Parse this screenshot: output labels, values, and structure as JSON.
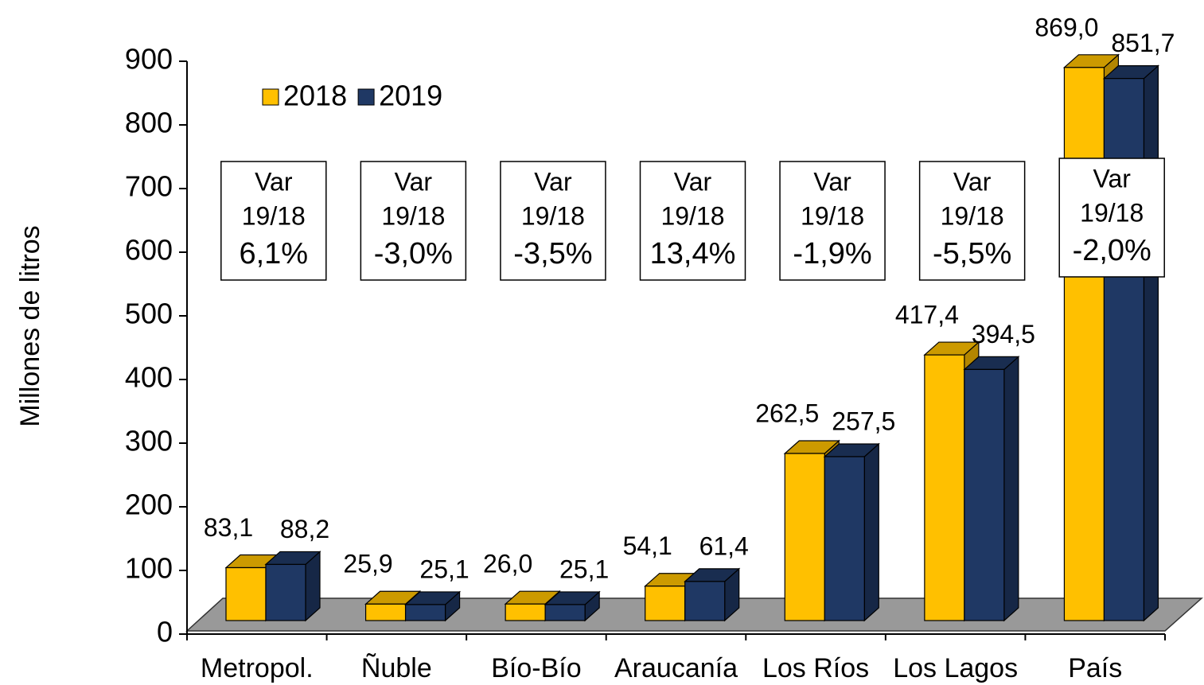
{
  "chart_data": {
    "type": "bar3d",
    "y_axis_label": "Millones de litros",
    "categories": [
      "Metropol.",
      "Ñuble",
      "Bío-Bío",
      "Araucanía",
      "Los Ríos",
      "Los Lagos",
      "País"
    ],
    "series": [
      {
        "name": "2018",
        "color": "#FFC000",
        "values": [
          83.1,
          25.9,
          26.0,
          54.1,
          262.5,
          417.4,
          869.0
        ],
        "value_labels": [
          "83,1",
          "25,9",
          "26,0",
          "54,1",
          "262,5",
          "417,4",
          "869,0"
        ]
      },
      {
        "name": "2019",
        "color": "#1F3864",
        "values": [
          88.2,
          25.1,
          25.1,
          61.4,
          257.5,
          394.5,
          851.7
        ],
        "value_labels": [
          "88,2",
          "25,1",
          "25,1",
          "61,4",
          "257,5",
          "394,5",
          "851,7"
        ]
      }
    ],
    "annotations": [
      {
        "title": "Var",
        "period": "19/18",
        "text": "6,1%"
      },
      {
        "title": "Var",
        "period": "19/18",
        "text": "-3,0%"
      },
      {
        "title": "Var",
        "period": "19/18",
        "text": "-3,5%"
      },
      {
        "title": "Var",
        "period": "19/18",
        "text": "13,4%"
      },
      {
        "title": "Var",
        "period": "19/18",
        "text": "-1,9%"
      },
      {
        "title": "Var",
        "period": "19/18",
        "text": "-5,5%"
      },
      {
        "title": "Var",
        "period": "19/18",
        "text": "-2,0%"
      }
    ],
    "ylim": [
      0,
      900
    ],
    "yticks": [
      0,
      100,
      200,
      300,
      400,
      500,
      600,
      700,
      800,
      900
    ],
    "legend": "top-left"
  }
}
